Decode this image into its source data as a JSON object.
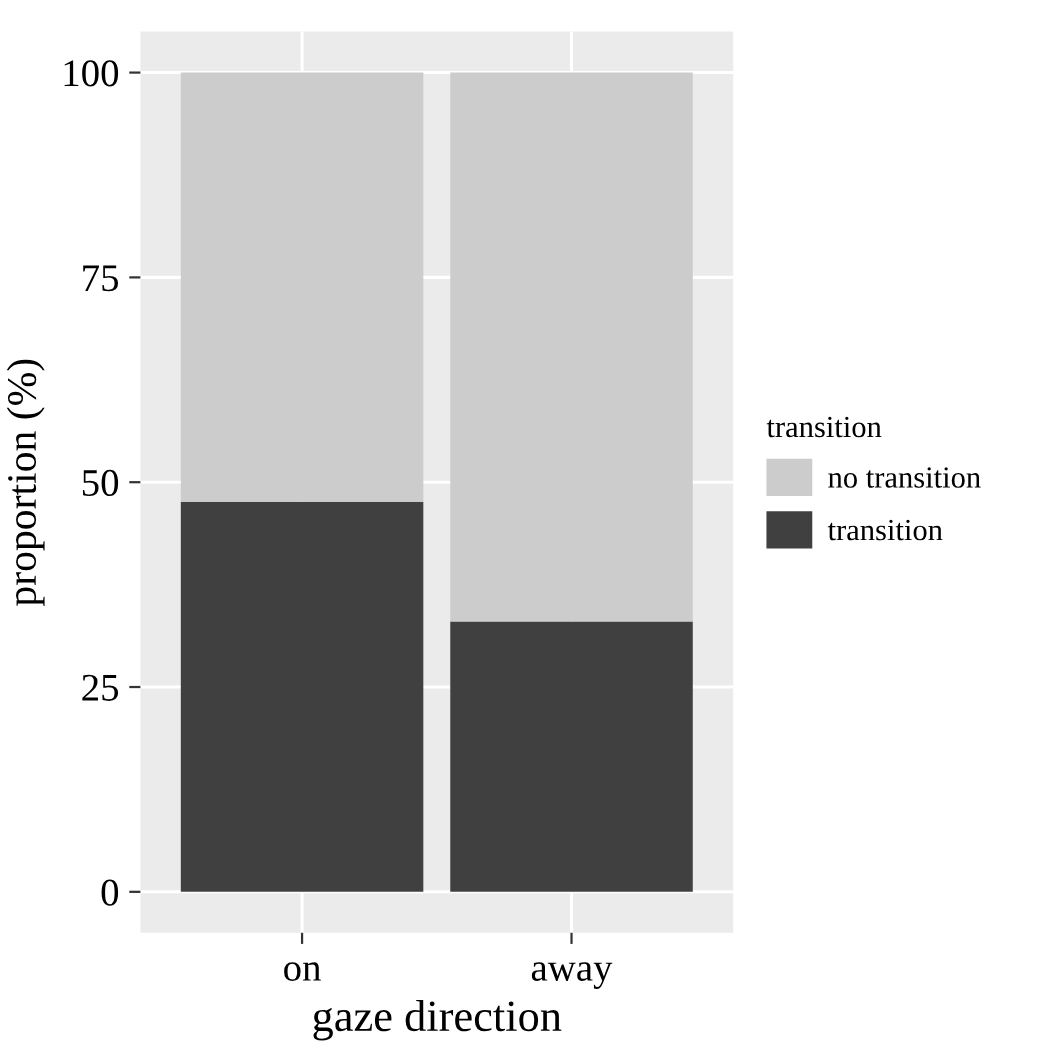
{
  "chart_data": {
    "type": "bar",
    "stacked": true,
    "xlabel": "gaze direction",
    "ylabel": "proportion (%)",
    "legend_title": "transition",
    "categories": [
      "on",
      "away"
    ],
    "series": [
      {
        "name": "transition",
        "color": "#404040",
        "values": [
          47.6,
          33.0
        ]
      },
      {
        "name": "no transition",
        "color": "#cccccc",
        "values": [
          52.4,
          67.0
        ]
      }
    ],
    "ylim": [
      -5,
      105
    ],
    "yticks": [
      0,
      25,
      50,
      75,
      100
    ],
    "grid": true,
    "legend": "right"
  }
}
